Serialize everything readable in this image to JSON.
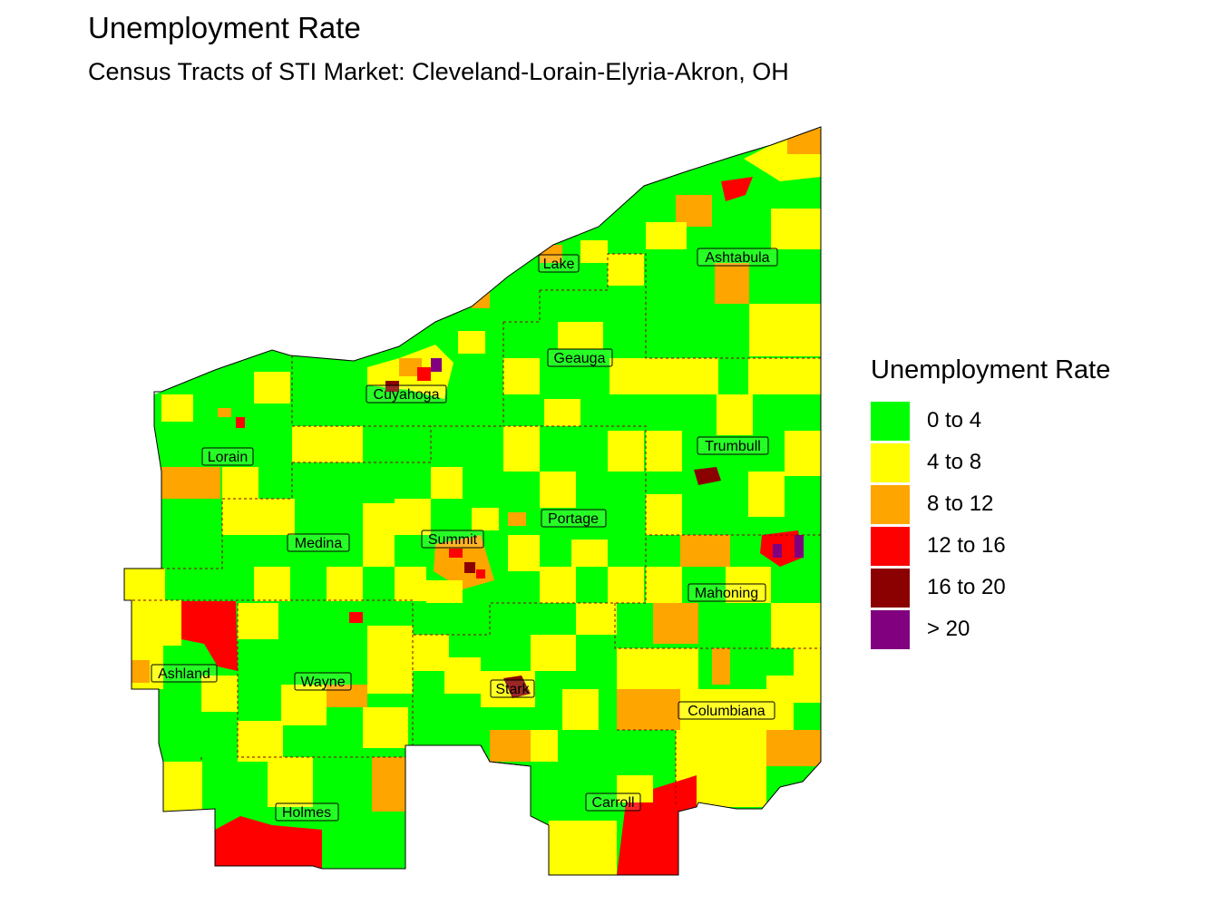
{
  "title": "Unemployment Rate",
  "subtitle": "Census Tracts of STI Market: Cleveland-Lorain-Elyria-Akron, OH",
  "legend": {
    "title": "Unemployment Rate",
    "items": [
      {
        "label": "0 to 4",
        "color": "#00ff00"
      },
      {
        "label": "4 to 8",
        "color": "#ffff00"
      },
      {
        "label": "8 to 12",
        "color": "#ffa500"
      },
      {
        "label": "12 to 16",
        "color": "#ff0000"
      },
      {
        "label": "16 to 20",
        "color": "#8b0000"
      },
      {
        "label": "> 20",
        "color": "#800080"
      }
    ]
  },
  "counties": [
    "Lake",
    "Ashtabula",
    "Geauga",
    "Cuyahoga",
    "Lorain",
    "Trumbull",
    "Portage",
    "Summit",
    "Medina",
    "Mahoning",
    "Ashland",
    "Wayne",
    "Stark",
    "Columbiana",
    "Carroll",
    "Holmes"
  ]
}
